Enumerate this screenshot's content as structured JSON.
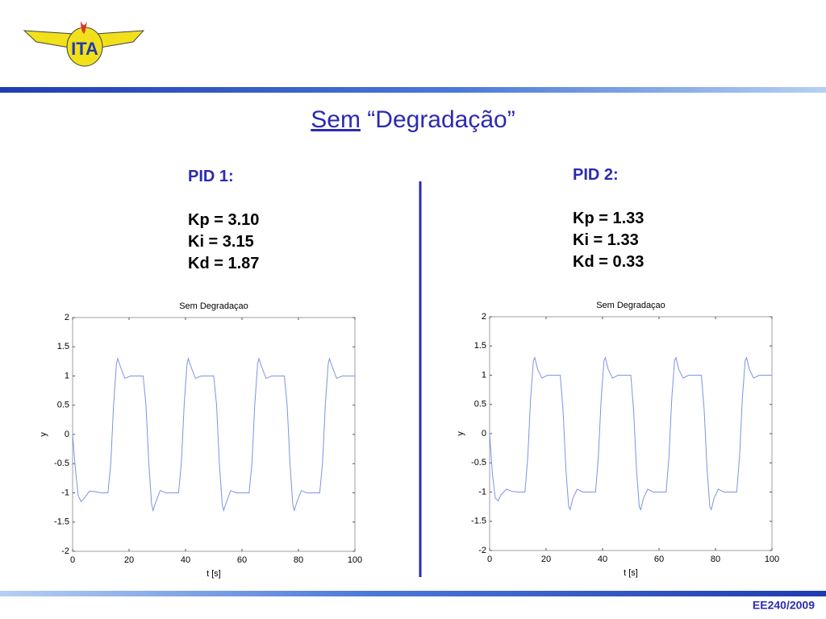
{
  "logo": "ITA",
  "title": {
    "underlined": "Sem",
    "rest": "“Degradação”"
  },
  "pid1": {
    "heading": "PID 1:",
    "params": [
      "Kp = 3.10",
      "Ki = 3.15",
      "Kd = 1.87"
    ]
  },
  "pid2": {
    "heading": "PID 2:",
    "params": [
      "Kp = 1.33",
      "Ki = 1.33",
      "Kd = 0.33"
    ]
  },
  "footer": "EE240/2009",
  "chart_data": [
    {
      "type": "line",
      "title": "Sem Degradaçao",
      "xlabel": "t [s]",
      "ylabel": "y",
      "x": [
        0,
        1,
        2,
        3,
        4,
        6,
        8,
        10,
        12.5,
        13.5,
        14.5,
        15.5,
        16,
        17,
        18.5,
        20.5,
        22.5,
        25,
        26,
        27,
        28,
        28.5,
        29.5,
        31,
        33,
        35,
        37.5,
        38.5,
        39.5,
        40.5,
        41,
        42,
        43.5,
        45.5,
        47.5,
        50,
        51,
        52,
        53,
        53.5,
        54.5,
        56,
        58,
        60,
        62.5,
        63.5,
        64.5,
        65.5,
        66,
        67,
        68.5,
        70.5,
        72.5,
        75,
        76,
        77,
        78,
        78.5,
        79.5,
        81,
        83,
        85,
        87.5,
        88.5,
        89.5,
        90.5,
        91,
        92,
        93.5,
        95.5,
        97.5,
        100
      ],
      "series": [
        {
          "color": "#7d93e6",
          "values": [
            0,
            -0.6,
            -1.05,
            -1.15,
            -1.1,
            -0.97,
            -0.98,
            -1,
            -1,
            -0.5,
            0.5,
            1.2,
            1.3,
            1.15,
            0.96,
            1.0,
            1.0,
            1,
            0.5,
            -0.5,
            -1.2,
            -1.3,
            -1.15,
            -0.96,
            -1,
            -1,
            -1,
            -0.5,
            0.5,
            1.2,
            1.3,
            1.15,
            0.96,
            1.0,
            1.0,
            1,
            0.5,
            -0.5,
            -1.2,
            -1.3,
            -1.15,
            -0.96,
            -1,
            -1,
            -1,
            -0.5,
            0.5,
            1.2,
            1.3,
            1.15,
            0.96,
            1.0,
            1.0,
            1,
            0.5,
            -0.5,
            -1.2,
            -1.3,
            -1.15,
            -0.96,
            -1,
            -1,
            -1,
            -0.5,
            0.5,
            1.2,
            1.3,
            1.15,
            0.96,
            1.0,
            1.0,
            1.0
          ]
        }
      ],
      "xlim": [
        0,
        100
      ],
      "ylim": [
        -2,
        2
      ],
      "xticks": [
        0,
        20,
        40,
        60,
        80,
        100
      ],
      "yticks": [
        -2,
        -1.5,
        -1,
        -0.5,
        0,
        0.5,
        1,
        1.5,
        2
      ]
    },
    {
      "type": "line",
      "title": "Sem Degradaçao",
      "xlabel": "t [s]",
      "ylabel": "y",
      "x": [
        0,
        1,
        2,
        3,
        4,
        6,
        8,
        10,
        12.5,
        13.5,
        14.5,
        15.5,
        16,
        17,
        18.5,
        20.5,
        22.5,
        25,
        26,
        27,
        28,
        28.5,
        29.5,
        31,
        33,
        35,
        37.5,
        38.5,
        39.5,
        40.5,
        41,
        42,
        43.5,
        45.5,
        47.5,
        50,
        51,
        52,
        53,
        53.5,
        54.5,
        56,
        58,
        60,
        62.5,
        63.5,
        64.5,
        65.5,
        66,
        67,
        68.5,
        70.5,
        72.5,
        75,
        76,
        77,
        78,
        78.5,
        79.5,
        81,
        83,
        85,
        87.5,
        88.5,
        89.5,
        90.5,
        91,
        92,
        93.5,
        95.5,
        97.5,
        100
      ],
      "series": [
        {
          "color": "#7d93e6",
          "values": [
            0,
            -0.7,
            -1.1,
            -1.15,
            -1.05,
            -0.95,
            -0.99,
            -1,
            -1,
            -0.4,
            0.6,
            1.25,
            1.3,
            1.1,
            0.95,
            1.0,
            1.0,
            1,
            0.4,
            -0.6,
            -1.25,
            -1.3,
            -1.1,
            -0.95,
            -1,
            -1,
            -1,
            -0.4,
            0.6,
            1.25,
            1.3,
            1.1,
            0.95,
            1.0,
            1.0,
            1,
            0.4,
            -0.6,
            -1.25,
            -1.3,
            -1.1,
            -0.95,
            -1,
            -1,
            -1,
            -0.4,
            0.6,
            1.25,
            1.3,
            1.1,
            0.95,
            1.0,
            1.0,
            1,
            0.4,
            -0.6,
            -1.25,
            -1.3,
            -1.1,
            -0.95,
            -1,
            -1,
            -1,
            -0.4,
            0.6,
            1.25,
            1.3,
            1.1,
            0.95,
            1.0,
            1.0,
            1.0
          ]
        }
      ],
      "xlim": [
        0,
        100
      ],
      "ylim": [
        -2,
        2
      ],
      "xticks": [
        0,
        20,
        40,
        60,
        80,
        100
      ],
      "yticks": [
        -2,
        -1.5,
        -1,
        -0.5,
        0,
        0.5,
        1,
        1.5,
        2
      ]
    }
  ]
}
